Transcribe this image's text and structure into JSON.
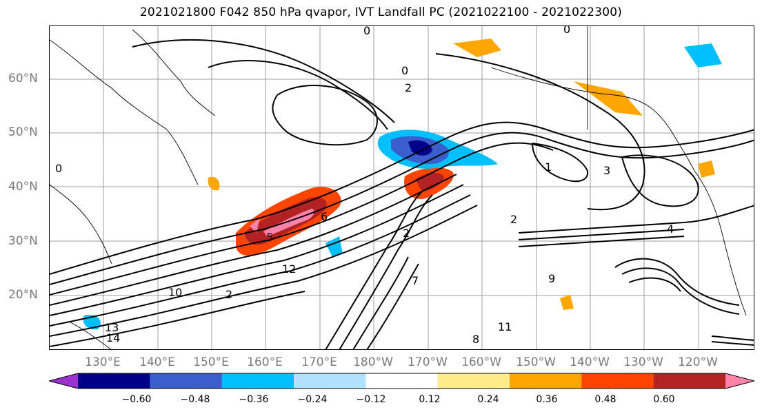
{
  "title": "2021021800 F042 850 hPa qvapor, IVT Landfall PC (2021022100 - 2021022300)",
  "lat_labels": [
    "60°N",
    "50°N",
    "40°N",
    "30°N",
    "20°N"
  ],
  "lon_labels": [
    "130°E",
    "140°E",
    "150°E",
    "160°E",
    "170°E",
    "180°W",
    "170°W",
    "160°W",
    "150°W",
    "140°W",
    "130°W",
    "120°W"
  ],
  "colorbar": {
    "ticks": [
      "−0.60",
      "−0.48",
      "−0.36",
      "−0.24",
      "−0.12",
      "0.12",
      "0.24",
      "0.36",
      "0.48",
      "0.60"
    ],
    "colors": [
      "#9a32cd",
      "#00008b",
      "#3a5fcd",
      "#00bfff",
      "#b0e2ff",
      "#ffffff",
      "#ffec8b",
      "#ffa500",
      "#ff4500",
      "#b22222",
      "#ff82ab"
    ]
  },
  "contour_labels": [
    "0",
    "0",
    "0",
    "0",
    "2",
    "2",
    "2",
    "2",
    "1",
    "3",
    "4",
    "5",
    "6",
    "10",
    "12",
    "13",
    "14",
    "9",
    "8",
    "7",
    "11"
  ],
  "map_features": [
    "coastlines",
    "graticule",
    "qvapor shading",
    "IVT contours"
  ]
}
